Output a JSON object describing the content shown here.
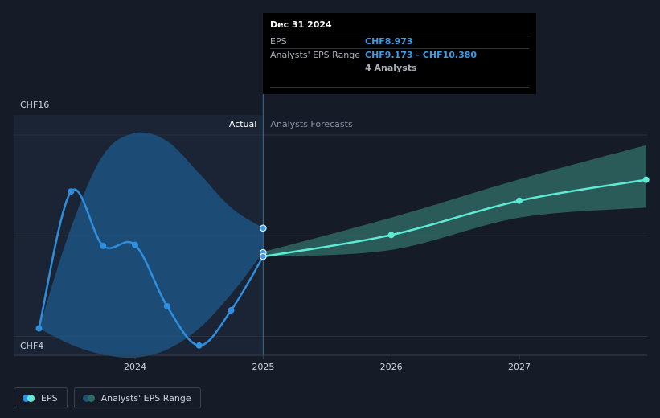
{
  "tooltip": {
    "date": "Dec 31 2024",
    "rows": [
      {
        "label": "EPS",
        "value": "CHF8.973"
      },
      {
        "label": "Analysts' EPS Range",
        "value": "CHF9.173 - CHF10.380"
      },
      {
        "label": "",
        "value": "4 Analysts"
      }
    ]
  },
  "legend": [
    {
      "label": "EPS",
      "colors": [
        "#2e8fe0",
        "#5eead4"
      ]
    },
    {
      "label": "Analysts' EPS Range",
      "colors": [
        "#1f4e74",
        "#2f6b66"
      ]
    }
  ],
  "chart_data": {
    "type": "line",
    "ylim": [
      4,
      16
    ],
    "xlim": [
      2023.25,
      2027.99
    ],
    "y_tick_labels": [
      {
        "value": 16,
        "label": "CHF16"
      },
      {
        "value": 4,
        "label": "CHF4"
      }
    ],
    "y_gridlines": [
      15,
      10,
      5
    ],
    "x_ticks": [
      {
        "value": 2024,
        "label": "2024"
      },
      {
        "value": 2025,
        "label": "2025"
      },
      {
        "value": 2026,
        "label": "2026"
      },
      {
        "value": 2027,
        "label": "2027"
      }
    ],
    "divider_x": 2025,
    "region_labels": {
      "actual": "Actual",
      "forecast": "Analysts Forecasts"
    },
    "colors": {
      "eps_actual": "#2e8fe0",
      "eps_forecast": "#5eead4",
      "range_actual": "#1e5a8c",
      "range_forecast": "#2f6b66"
    },
    "series": [
      {
        "name": "EPS",
        "x": [
          2023.25,
          2023.5,
          2023.75,
          2024.0,
          2024.25,
          2024.5,
          2024.75,
          2025.0
        ],
        "y": [
          5.4,
          12.2,
          9.5,
          9.55,
          6.5,
          4.55,
          6.3,
          8.97
        ]
      },
      {
        "name": "EPS",
        "x": [
          2025.0,
          2026.0,
          2027.0,
          2027.99
        ],
        "y": [
          8.97,
          10.04,
          11.74,
          12.78
        ]
      }
    ],
    "range_actual": {
      "x": [
        2023.25,
        2023.5,
        2023.75,
        2024.0,
        2024.25,
        2024.5,
        2024.75,
        2025.0
      ],
      "low": [
        5.4,
        4.6,
        4.1,
        3.95,
        4.35,
        5.4,
        7.1,
        9.17
      ],
      "high": [
        5.4,
        10.4,
        14.0,
        15.1,
        14.7,
        13.1,
        11.4,
        10.38
      ]
    },
    "range_forecast": {
      "x": [
        2025.0,
        2026.0,
        2027.0,
        2027.99
      ],
      "low": [
        8.95,
        9.3,
        10.9,
        11.4
      ],
      "high": [
        9.2,
        10.9,
        12.8,
        14.5
      ]
    },
    "markers": [
      {
        "x": 2025.0,
        "y": 10.38
      },
      {
        "x": 2025.0,
        "y": 9.17
      },
      {
        "x": 2025.0,
        "y": 8.97
      }
    ]
  }
}
